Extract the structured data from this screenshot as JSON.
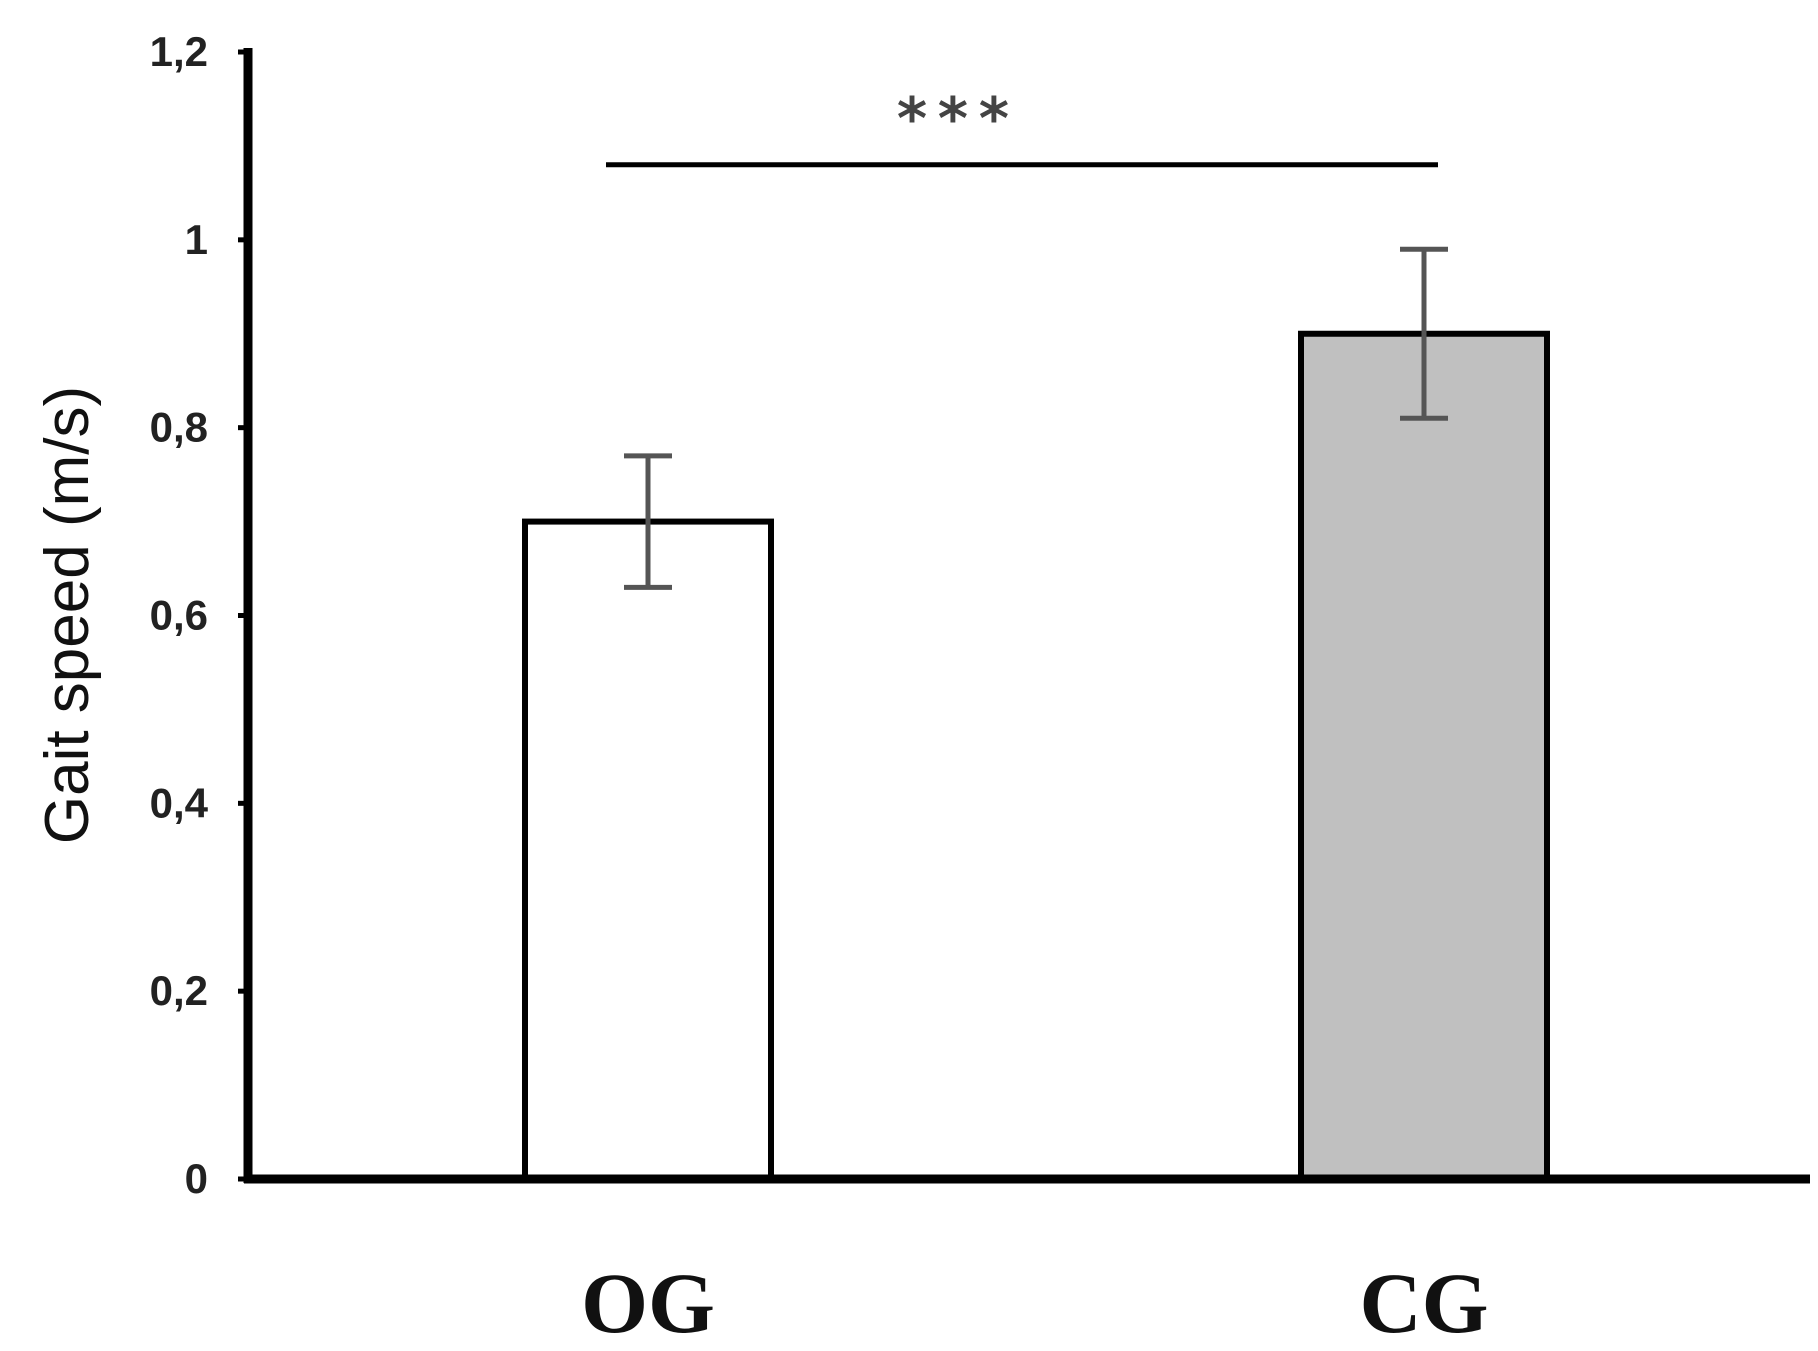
{
  "chart_data": {
    "type": "bar",
    "ylabel": "Gait speed (m/s)",
    "xlabel": "",
    "categories": [
      "OG",
      "CG"
    ],
    "values": [
      0.7,
      0.9
    ],
    "error": [
      0.07,
      0.09
    ],
    "ylim": [
      0,
      1.2
    ],
    "yticks": [
      0,
      0.2,
      0.4,
      0.6,
      0.8,
      1.0,
      1.2
    ],
    "ytick_labels": [
      "0",
      "0,2",
      "0,4",
      "0,6",
      "0,8",
      "1",
      "1,2"
    ],
    "bar_colors": [
      "#ffffff",
      "#c0c0c0"
    ],
    "significance": {
      "label": "***",
      "between": [
        "OG",
        "CG"
      ],
      "y": 1.08
    },
    "grid": false,
    "legend": "none"
  }
}
